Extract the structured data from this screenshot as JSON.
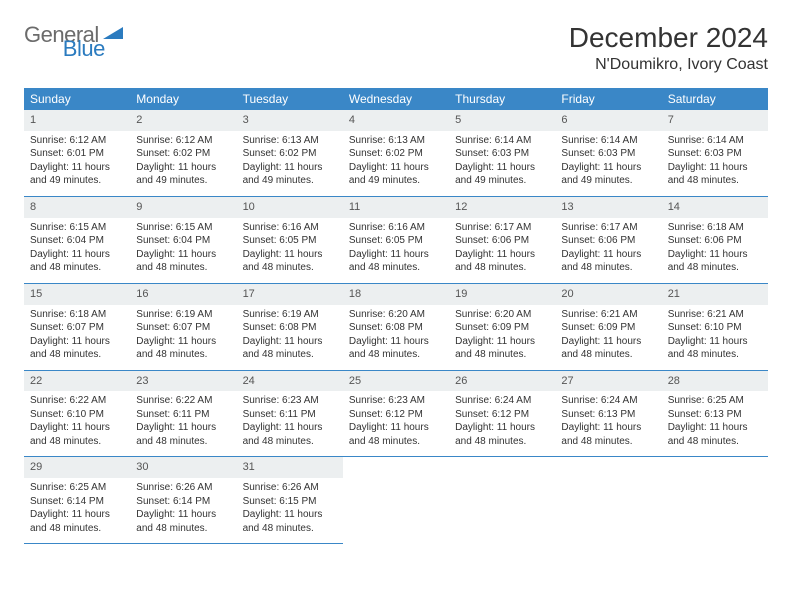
{
  "brand": {
    "part1": "General",
    "part2": "Blue"
  },
  "title": "December 2024",
  "location": "N'Doumikro, Ivory Coast",
  "colors": {
    "header_bg": "#3a87c7",
    "header_text": "#ffffff",
    "daynum_bg": "#eceff0",
    "logo_gray": "#6b6b6b",
    "logo_blue": "#2b7bbf",
    "row_border": "#3a87c7"
  },
  "typography": {
    "month_title_fontsize": 28,
    "location_fontsize": 16,
    "dayheader_fontsize": 12,
    "daynum_fontsize": 11,
    "cell_fontsize": 10
  },
  "day_headers": [
    "Sunday",
    "Monday",
    "Tuesday",
    "Wednesday",
    "Thursday",
    "Friday",
    "Saturday"
  ],
  "weeks": [
    [
      {
        "n": "1",
        "sr": "6:12 AM",
        "ss": "6:01 PM",
        "dl": "11 hours and 49 minutes."
      },
      {
        "n": "2",
        "sr": "6:12 AM",
        "ss": "6:02 PM",
        "dl": "11 hours and 49 minutes."
      },
      {
        "n": "3",
        "sr": "6:13 AM",
        "ss": "6:02 PM",
        "dl": "11 hours and 49 minutes."
      },
      {
        "n": "4",
        "sr": "6:13 AM",
        "ss": "6:02 PM",
        "dl": "11 hours and 49 minutes."
      },
      {
        "n": "5",
        "sr": "6:14 AM",
        "ss": "6:03 PM",
        "dl": "11 hours and 49 minutes."
      },
      {
        "n": "6",
        "sr": "6:14 AM",
        "ss": "6:03 PM",
        "dl": "11 hours and 49 minutes."
      },
      {
        "n": "7",
        "sr": "6:14 AM",
        "ss": "6:03 PM",
        "dl": "11 hours and 48 minutes."
      }
    ],
    [
      {
        "n": "8",
        "sr": "6:15 AM",
        "ss": "6:04 PM",
        "dl": "11 hours and 48 minutes."
      },
      {
        "n": "9",
        "sr": "6:15 AM",
        "ss": "6:04 PM",
        "dl": "11 hours and 48 minutes."
      },
      {
        "n": "10",
        "sr": "6:16 AM",
        "ss": "6:05 PM",
        "dl": "11 hours and 48 minutes."
      },
      {
        "n": "11",
        "sr": "6:16 AM",
        "ss": "6:05 PM",
        "dl": "11 hours and 48 minutes."
      },
      {
        "n": "12",
        "sr": "6:17 AM",
        "ss": "6:06 PM",
        "dl": "11 hours and 48 minutes."
      },
      {
        "n": "13",
        "sr": "6:17 AM",
        "ss": "6:06 PM",
        "dl": "11 hours and 48 minutes."
      },
      {
        "n": "14",
        "sr": "6:18 AM",
        "ss": "6:06 PM",
        "dl": "11 hours and 48 minutes."
      }
    ],
    [
      {
        "n": "15",
        "sr": "6:18 AM",
        "ss": "6:07 PM",
        "dl": "11 hours and 48 minutes."
      },
      {
        "n": "16",
        "sr": "6:19 AM",
        "ss": "6:07 PM",
        "dl": "11 hours and 48 minutes."
      },
      {
        "n": "17",
        "sr": "6:19 AM",
        "ss": "6:08 PM",
        "dl": "11 hours and 48 minutes."
      },
      {
        "n": "18",
        "sr": "6:20 AM",
        "ss": "6:08 PM",
        "dl": "11 hours and 48 minutes."
      },
      {
        "n": "19",
        "sr": "6:20 AM",
        "ss": "6:09 PM",
        "dl": "11 hours and 48 minutes."
      },
      {
        "n": "20",
        "sr": "6:21 AM",
        "ss": "6:09 PM",
        "dl": "11 hours and 48 minutes."
      },
      {
        "n": "21",
        "sr": "6:21 AM",
        "ss": "6:10 PM",
        "dl": "11 hours and 48 minutes."
      }
    ],
    [
      {
        "n": "22",
        "sr": "6:22 AM",
        "ss": "6:10 PM",
        "dl": "11 hours and 48 minutes."
      },
      {
        "n": "23",
        "sr": "6:22 AM",
        "ss": "6:11 PM",
        "dl": "11 hours and 48 minutes."
      },
      {
        "n": "24",
        "sr": "6:23 AM",
        "ss": "6:11 PM",
        "dl": "11 hours and 48 minutes."
      },
      {
        "n": "25",
        "sr": "6:23 AM",
        "ss": "6:12 PM",
        "dl": "11 hours and 48 minutes."
      },
      {
        "n": "26",
        "sr": "6:24 AM",
        "ss": "6:12 PM",
        "dl": "11 hours and 48 minutes."
      },
      {
        "n": "27",
        "sr": "6:24 AM",
        "ss": "6:13 PM",
        "dl": "11 hours and 48 minutes."
      },
      {
        "n": "28",
        "sr": "6:25 AM",
        "ss": "6:13 PM",
        "dl": "11 hours and 48 minutes."
      }
    ],
    [
      {
        "n": "29",
        "sr": "6:25 AM",
        "ss": "6:14 PM",
        "dl": "11 hours and 48 minutes."
      },
      {
        "n": "30",
        "sr": "6:26 AM",
        "ss": "6:14 PM",
        "dl": "11 hours and 48 minutes."
      },
      {
        "n": "31",
        "sr": "6:26 AM",
        "ss": "6:15 PM",
        "dl": "11 hours and 48 minutes."
      },
      null,
      null,
      null,
      null
    ]
  ],
  "labels": {
    "sunrise": "Sunrise: ",
    "sunset": "Sunset: ",
    "daylight": "Daylight: "
  }
}
